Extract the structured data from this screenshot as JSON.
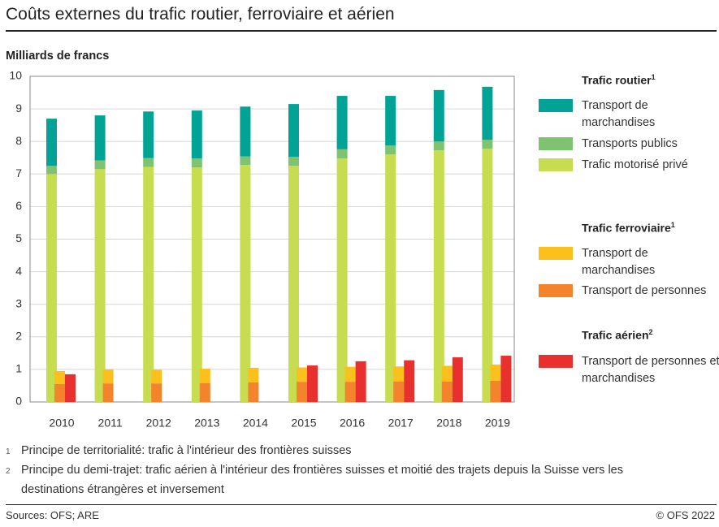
{
  "title": "Coûts externes du trafic routier, ferroviaire et aérien",
  "chart_data": {
    "type": "bar",
    "y_axis_label": "Milliards de francs",
    "categories": [
      "2010",
      "2011",
      "2012",
      "2013",
      "2014",
      "2015",
      "2016",
      "2017",
      "2018",
      "2019"
    ],
    "ylim": [
      0,
      10
    ],
    "yticks": [
      0,
      1,
      2,
      3,
      4,
      5,
      6,
      7,
      8,
      9,
      10
    ],
    "grid": true,
    "legend_groups": [
      {
        "title": "Trafic routier",
        "note": "1"
      },
      {
        "title": "Trafic ferroviaire",
        "note": "1"
      },
      {
        "title": "Trafic aérien",
        "note": "2"
      }
    ],
    "series": [
      {
        "name": "Transport de marchandises",
        "group": 0,
        "color": "#00a396",
        "values": [
          1.45,
          1.38,
          1.43,
          1.47,
          1.53,
          1.62,
          1.64,
          1.52,
          1.58,
          1.63
        ]
      },
      {
        "name": "Transports publics",
        "group": 0,
        "color": "#7dc370",
        "values": [
          0.25,
          0.27,
          0.27,
          0.28,
          0.26,
          0.28,
          0.28,
          0.28,
          0.27,
          0.27
        ]
      },
      {
        "name": "Trafic motorisé privé",
        "group": 0,
        "color": "#c8dc50",
        "values": [
          7.0,
          7.15,
          7.22,
          7.2,
          7.28,
          7.25,
          7.48,
          7.6,
          7.73,
          7.78
        ]
      },
      {
        "name": "Transport de marchandises",
        "group": 1,
        "color": "#fbc01c",
        "values": [
          0.4,
          0.43,
          0.42,
          0.44,
          0.45,
          0.44,
          0.46,
          0.46,
          0.48,
          0.5
        ]
      },
      {
        "name": "Transport de personnes",
        "group": 1,
        "color": "#f4842c",
        "values": [
          0.55,
          0.57,
          0.57,
          0.58,
          0.6,
          0.62,
          0.62,
          0.63,
          0.63,
          0.65
        ]
      },
      {
        "name": "Transport de personnes et marchandises",
        "group": 2,
        "color": "#e8312f",
        "values": [
          0.85,
          null,
          null,
          null,
          null,
          1.12,
          1.25,
          1.28,
          1.37,
          1.42
        ]
      }
    ]
  },
  "footnotes": [
    {
      "marker": "1",
      "text": "Principe de territorialité: trafic à l'intérieur des frontières suisses"
    },
    {
      "marker": "2",
      "text": "Principe du demi-trajet: trafic aérien à l'intérieur des frontières suisses et moitié des trajets depuis la Suisse vers les destinations étrangères et inversement"
    }
  ],
  "source": "Sources: OFS; ARE",
  "copyright": "© OFS 2022"
}
